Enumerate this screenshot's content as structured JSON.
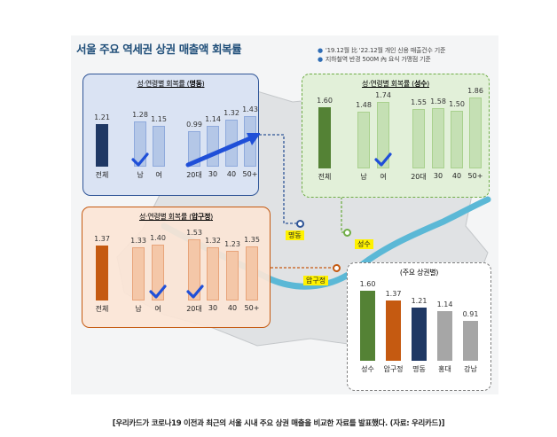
{
  "title": "서울 주요 역세권 상권 매출액 회복률",
  "notes": [
    "'19.12월 比 '22.12월 개인 신용 매출건수 기준",
    "지하철역 반경 500M 內 요식 가맹점 기준"
  ],
  "caption": "[우리카드가 코로나19 이전과 최근의 서울 시내 주요 상권 매출을 비교한 자료를 발표했다. (자료: 우리카드)]",
  "places": {
    "myeongdong": "명동",
    "seongsu": "성수",
    "apgujeong": "압구정"
  },
  "icons": {
    "check": "checkmark-icon",
    "trend": "trend-arrow-icon",
    "location": "location-pin-icon"
  },
  "colors": {
    "myeongdong_total": "#1f3864",
    "myeongdong_bar": "#b4c7e7",
    "myeongdong_panel": "#dae3f3",
    "myeongdong_border": "#2f5597",
    "seongsu_total": "#548235",
    "seongsu_bar": "#c5e0b4",
    "seongsu_panel": "#e2f0d9",
    "seongsu_border": "#70ad47",
    "apgujeong_total": "#c55a11",
    "apgujeong_bar": "#f4c7a8",
    "apgujeong_panel": "#fbe5d6",
    "apgujeong_border": "#c55a11",
    "summary_gray": "#a6a6a6",
    "check": "#1f4fd8",
    "river": "#5bb8d6"
  },
  "chart_data": [
    {
      "type": "bar",
      "title": "성·연령별 회복률 (명동)",
      "title_pre": "성·연령별 회복률 (",
      "title_place": "명동",
      "title_post": ")",
      "categories": [
        "전체",
        "남",
        "여",
        "20대",
        "30",
        "40",
        "50+"
      ],
      "values": [
        1.21,
        1.28,
        1.15,
        0.99,
        1.14,
        1.32,
        1.43
      ],
      "value_labels": [
        "1.21",
        "1.28",
        "1.15",
        "0.99",
        "1.14",
        "1.32",
        "1.43"
      ],
      "check": "남",
      "trend_arrow": "20대 → 50+"
    },
    {
      "type": "bar",
      "title": "성·연령별 회복률 (성수)",
      "title_pre": "성·연령별 회복률 (",
      "title_place": "성수",
      "title_post": ")",
      "categories": [
        "전체",
        "남",
        "여",
        "20대",
        "30",
        "40",
        "50+"
      ],
      "values": [
        1.6,
        1.48,
        1.74,
        1.55,
        1.58,
        1.5,
        1.86
      ],
      "value_labels": [
        "1.60",
        "1.48",
        "1.74",
        "1.55",
        "1.58",
        "1.50",
        "1.86"
      ],
      "check": "여"
    },
    {
      "type": "bar",
      "title": "성·연령별 회복률 (압구정)",
      "title_pre": "성·연령별 회복률 (",
      "title_place": "압구정",
      "title_post": ")",
      "categories": [
        "전체",
        "남",
        "여",
        "20대",
        "30",
        "40",
        "50+"
      ],
      "values": [
        1.37,
        1.33,
        1.4,
        1.53,
        1.32,
        1.23,
        1.35
      ],
      "value_labels": [
        "1.37",
        "1.33",
        "1.40",
        "1.53",
        "1.32",
        "1.23",
        "1.35"
      ],
      "check": [
        "여",
        "20대"
      ]
    },
    {
      "type": "bar",
      "title": "(주요 상권별)",
      "categories": [
        "성수",
        "압구정",
        "명동",
        "홍대",
        "강남"
      ],
      "values": [
        1.6,
        1.37,
        1.21,
        1.14,
        0.91
      ],
      "value_labels": [
        "1.60",
        "1.37",
        "1.21",
        "1.14",
        "0.91"
      ]
    }
  ]
}
